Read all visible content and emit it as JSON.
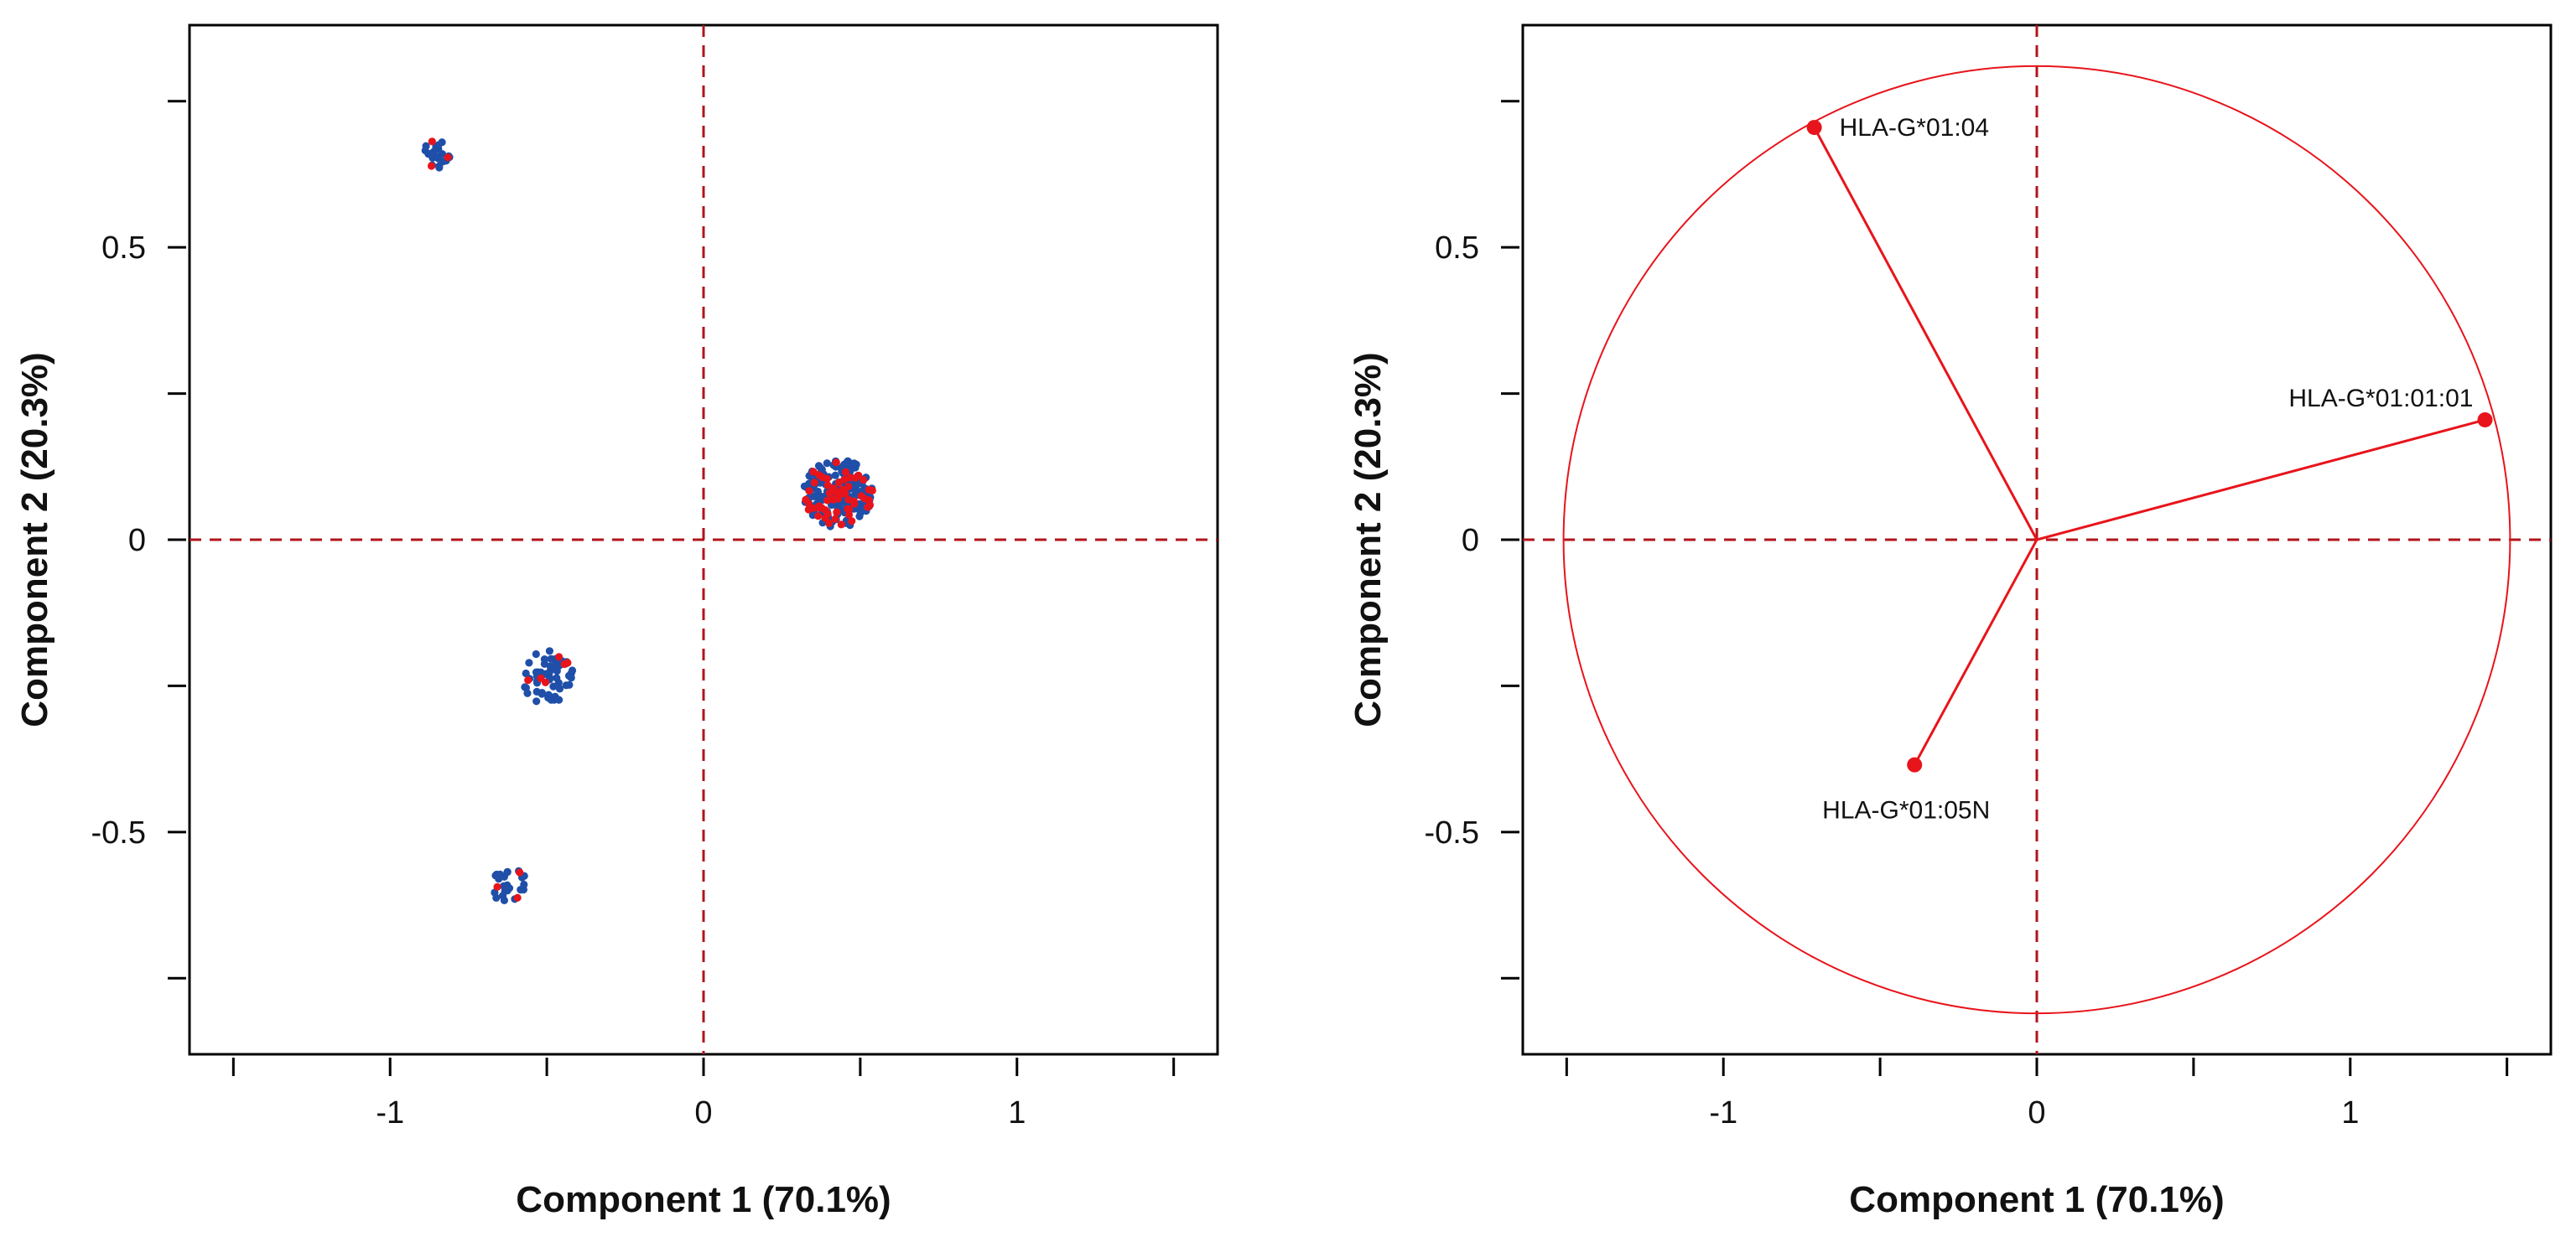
{
  "colors": {
    "blue": "#1f4fa8",
    "red": "#e8141b",
    "refline": "#b1141b",
    "axis": "#000000"
  },
  "chart_data": [
    {
      "type": "scatter",
      "title": "",
      "xlabel": "Component 1 (70.1%)",
      "ylabel": "Component 2 (20.3%)",
      "xlim": [
        -1.64,
        1.64
      ],
      "ylim": [
        -0.88,
        0.88
      ],
      "xticks": [
        -1.5,
        -1,
        -0.5,
        0,
        0.5,
        1,
        1.5
      ],
      "xticklabels": [
        "",
        "-1",
        "",
        "0",
        "",
        "1",
        ""
      ],
      "yticks": [
        -0.75,
        -0.5,
        -0.25,
        0,
        0.25,
        0.5,
        0.75
      ],
      "yticklabels": [
        "",
        "-0.5",
        "",
        "0",
        "",
        "0.5",
        ""
      ],
      "reference_lines": {
        "x": 0,
        "y": 0
      },
      "clusters": [
        {
          "cx": -0.85,
          "cy": 0.66,
          "spread": 0.045,
          "blue": 22,
          "red": 3
        },
        {
          "cx": 0.43,
          "cy": 0.08,
          "spread": 0.11,
          "blue": 150,
          "red": 55
        },
        {
          "cx": -0.5,
          "cy": -0.235,
          "spread": 0.085,
          "blue": 55,
          "red": 6
        },
        {
          "cx": -0.62,
          "cy": -0.59,
          "spread": 0.06,
          "blue": 24,
          "red": 3
        }
      ]
    },
    {
      "type": "biplot",
      "title": "",
      "xlabel": "Component 1 (70.1%)",
      "ylabel": "Component 2 (20.3%)",
      "xlim": [
        -1.64,
        1.64
      ],
      "ylim": [
        -0.88,
        0.88
      ],
      "xticks": [
        -1.5,
        -1,
        -0.5,
        0,
        0.5,
        1,
        1.5
      ],
      "xticklabels": [
        "",
        "-1",
        "",
        "0",
        "",
        "1",
        ""
      ],
      "yticks": [
        -0.75,
        -0.5,
        -0.25,
        0,
        0.25,
        0.5,
        0.75
      ],
      "yticklabels": [
        "",
        "-0.5",
        "",
        "0",
        "",
        "0.5",
        ""
      ],
      "reference_lines": {
        "x": 0,
        "y": 0
      },
      "circle": {
        "rx": 1.51,
        "ry": 0.81
      },
      "vectors": [
        {
          "label": "HLA-G*01:04",
          "x": -0.71,
          "y": 0.705,
          "anchor": "start",
          "dx": 30,
          "dy": 10
        },
        {
          "label": "HLA-G*01:01:01",
          "x": 1.43,
          "y": 0.205,
          "anchor": "end",
          "dx": -14,
          "dy": -16
        },
        {
          "label": "HLA-G*01:05N",
          "x": -0.39,
          "y": -0.385,
          "anchor": "middle",
          "dx": -10,
          "dy": 64
        }
      ]
    }
  ]
}
